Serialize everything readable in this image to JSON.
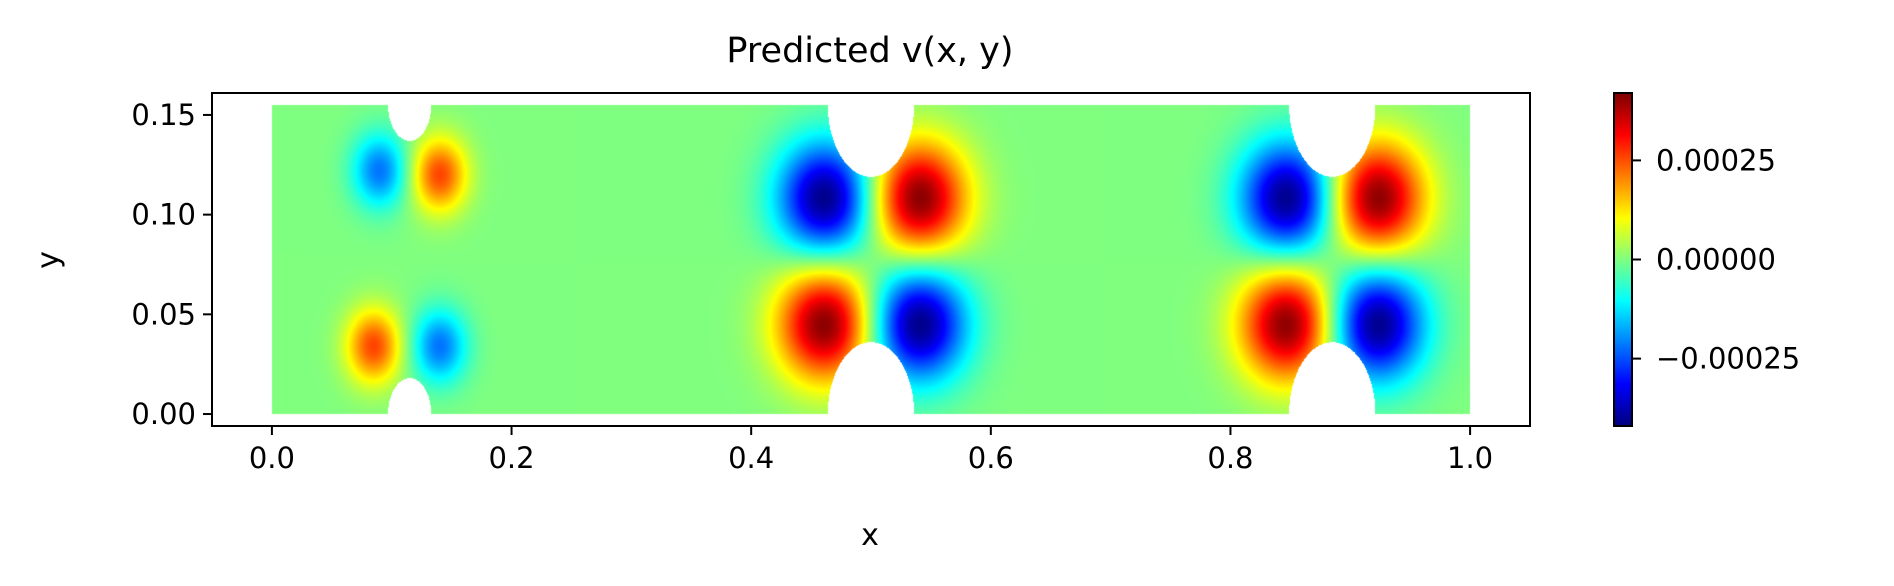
{
  "chart_data": {
    "type": "heatmap",
    "title": "Predicted v(x, y)",
    "xlabel": "x",
    "ylabel": "y",
    "xlim": [
      -0.05,
      1.05
    ],
    "ylim": [
      -0.006,
      0.161
    ],
    "xticks": [
      0.0,
      0.2,
      0.4,
      0.6,
      0.8,
      1.0
    ],
    "xtick_labels": [
      "0.0",
      "0.2",
      "0.4",
      "0.6",
      "0.8",
      "1.0"
    ],
    "yticks": [
      0.0,
      0.05,
      0.1,
      0.15
    ],
    "ytick_labels": [
      "0.00",
      "0.05",
      "0.10",
      "0.15"
    ],
    "colormap": "jet",
    "colorbar": {
      "vmin": -0.00042,
      "vmax": 0.00042,
      "ticks": [
        0.00025,
        0.0,
        -0.00025
      ],
      "tick_labels": [
        "0.00025",
        "0.00000",
        "−0.00025"
      ]
    },
    "domain": {
      "x_range": [
        0.0,
        1.0
      ],
      "y_range": [
        0.0,
        0.155
      ],
      "notches": [
        {
          "x_center": 0.115,
          "half_width": 0.018,
          "top_depth": 0.018,
          "bottom_depth": 0.018
        },
        {
          "x_center": 0.5,
          "half_width": 0.036,
          "top_depth": 0.036,
          "bottom_depth": 0.036
        },
        {
          "x_center": 0.885,
          "half_width": 0.036,
          "top_depth": 0.036,
          "bottom_depth": 0.036
        }
      ]
    },
    "blobs": [
      {
        "x": 0.09,
        "y": 0.122,
        "amplitude": -0.00022,
        "sx": 0.016,
        "sy": 0.013
      },
      {
        "x": 0.14,
        "y": 0.12,
        "amplitude": 0.00026,
        "sx": 0.016,
        "sy": 0.013
      },
      {
        "x": 0.085,
        "y": 0.034,
        "amplitude": 0.00026,
        "sx": 0.016,
        "sy": 0.013
      },
      {
        "x": 0.14,
        "y": 0.034,
        "amplitude": -0.00022,
        "sx": 0.016,
        "sy": 0.013
      },
      {
        "x": 0.462,
        "y": 0.108,
        "amplitude": -0.00042,
        "sx": 0.028,
        "sy": 0.02
      },
      {
        "x": 0.54,
        "y": 0.108,
        "amplitude": 0.00042,
        "sx": 0.028,
        "sy": 0.02
      },
      {
        "x": 0.462,
        "y": 0.045,
        "amplitude": 0.00042,
        "sx": 0.028,
        "sy": 0.02
      },
      {
        "x": 0.54,
        "y": 0.045,
        "amplitude": -0.00042,
        "sx": 0.028,
        "sy": 0.02
      },
      {
        "x": 0.848,
        "y": 0.108,
        "amplitude": -0.00042,
        "sx": 0.028,
        "sy": 0.02
      },
      {
        "x": 0.922,
        "y": 0.108,
        "amplitude": 0.00042,
        "sx": 0.028,
        "sy": 0.02
      },
      {
        "x": 0.848,
        "y": 0.045,
        "amplitude": 0.00042,
        "sx": 0.028,
        "sy": 0.02
      },
      {
        "x": 0.922,
        "y": 0.045,
        "amplitude": -0.00042,
        "sx": 0.028,
        "sy": 0.02
      }
    ]
  }
}
